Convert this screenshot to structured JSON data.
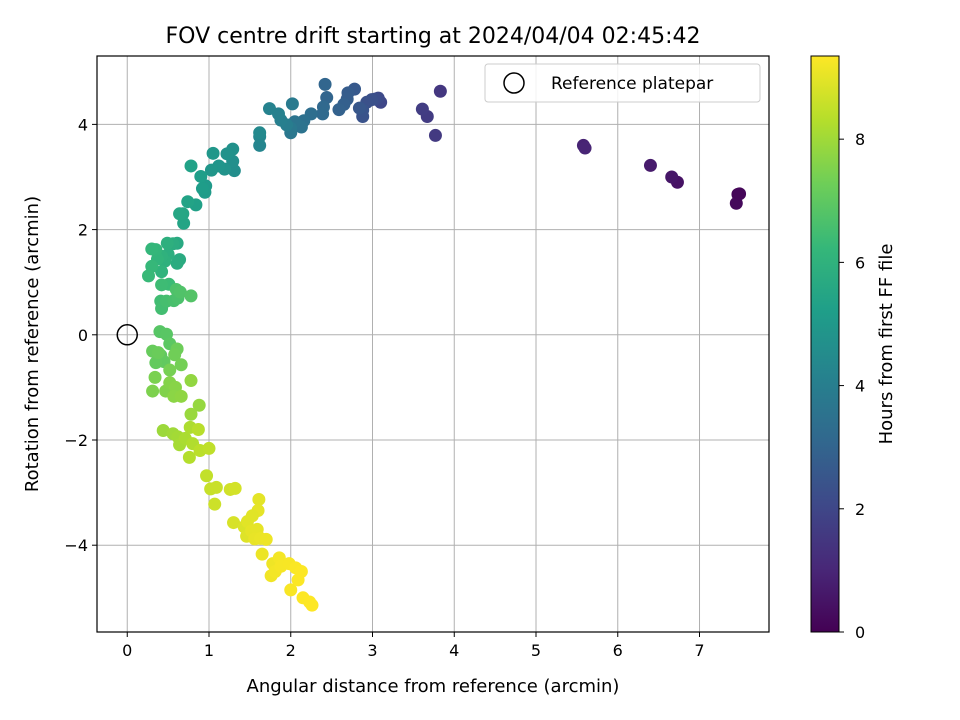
{
  "chart_data": {
    "type": "scatter",
    "title": "FOV centre drift starting at 2024/04/04 02:45:42",
    "xlabel": "Angular distance from reference (arcmin)",
    "ylabel": "Rotation from reference (arcmin)",
    "xlim": [
      -0.37,
      7.85
    ],
    "ylim": [
      -5.65,
      5.3
    ],
    "xticks": [
      0,
      1,
      2,
      3,
      4,
      5,
      6,
      7
    ],
    "yticks": [
      -4,
      -2,
      0,
      2,
      4
    ],
    "grid": true,
    "legend": {
      "position": "top-right",
      "entries": [
        "Reference platepar"
      ]
    },
    "reference_point": {
      "label": "Reference platepar",
      "x": 0,
      "y": 0
    },
    "colorbar": {
      "label": "Hours from first FF file",
      "colormap": "viridis",
      "range": [
        0,
        9.35
      ],
      "ticks": [
        0,
        2,
        4,
        6,
        8
      ]
    },
    "points": [
      [
        7.47,
        2.67,
        0.1
      ],
      [
        7.45,
        2.5,
        0.2
      ],
      [
        7.49,
        2.68,
        0.15
      ],
      [
        6.73,
        2.9,
        0.45
      ],
      [
        6.66,
        3.0,
        0.55
      ],
      [
        6.4,
        3.22,
        0.7
      ],
      [
        5.58,
        3.6,
        0.9
      ],
      [
        5.6,
        3.55,
        0.95
      ],
      [
        3.83,
        4.63,
        1.5
      ],
      [
        3.77,
        3.79,
        1.6
      ],
      [
        3.67,
        4.15,
        1.65
      ],
      [
        3.61,
        4.29,
        1.7
      ],
      [
        3.1,
        4.42,
        2.0
      ],
      [
        3.07,
        4.5,
        2.1
      ],
      [
        3.03,
        4.48,
        2.2
      ],
      [
        2.99,
        4.47,
        2.3
      ],
      [
        2.93,
        4.42,
        2.35
      ],
      [
        2.88,
        4.15,
        2.4
      ],
      [
        2.88,
        4.27,
        2.45
      ],
      [
        2.84,
        4.31,
        2.55
      ],
      [
        2.78,
        4.67,
        2.6
      ],
      [
        2.7,
        4.6,
        2.7
      ],
      [
        2.69,
        4.48,
        2.75
      ],
      [
        2.65,
        4.38,
        2.85
      ],
      [
        2.59,
        4.28,
        2.9
      ],
      [
        2.44,
        4.51,
        3.0
      ],
      [
        2.42,
        4.76,
        3.05
      ],
      [
        2.4,
        4.33,
        3.15
      ],
      [
        2.39,
        4.2,
        3.2
      ],
      [
        2.25,
        4.2,
        3.35
      ],
      [
        2.16,
        4.07,
        3.45
      ],
      [
        2.13,
        3.95,
        3.55
      ],
      [
        2.05,
        4.05,
        3.6
      ],
      [
        2.0,
        3.84,
        3.7
      ],
      [
        2.0,
        3.93,
        3.75
      ],
      [
        2.02,
        4.39,
        3.85
      ],
      [
        1.95,
        3.99,
        3.95
      ],
      [
        1.88,
        4.08,
        4.05
      ],
      [
        1.85,
        4.2,
        4.1
      ],
      [
        1.74,
        4.3,
        4.15
      ],
      [
        1.62,
        3.6,
        4.25
      ],
      [
        1.62,
        3.77,
        4.3
      ],
      [
        1.62,
        3.84,
        4.4
      ],
      [
        1.31,
        3.12,
        4.6
      ],
      [
        1.29,
        3.3,
        4.65
      ],
      [
        1.29,
        3.53,
        4.7
      ],
      [
        1.22,
        3.44,
        4.75
      ],
      [
        1.19,
        3.15,
        4.8
      ],
      [
        1.12,
        3.21,
        4.85
      ],
      [
        1.03,
        3.13,
        4.9
      ],
      [
        1.05,
        3.45,
        4.95
      ],
      [
        0.96,
        2.83,
        5.05
      ],
      [
        0.95,
        2.71,
        5.1
      ],
      [
        0.92,
        2.78,
        5.15
      ],
      [
        0.9,
        3.01,
        5.2
      ],
      [
        0.84,
        2.47,
        5.3
      ],
      [
        0.78,
        3.21,
        5.35
      ],
      [
        0.74,
        2.53,
        5.4
      ],
      [
        0.69,
        2.12,
        5.45
      ],
      [
        0.68,
        2.3,
        5.5
      ],
      [
        0.64,
        2.3,
        5.55
      ],
      [
        0.61,
        1.74,
        5.65
      ],
      [
        0.64,
        1.43,
        5.7
      ],
      [
        0.61,
        1.36,
        5.75
      ],
      [
        0.56,
        1.73,
        5.8
      ],
      [
        0.5,
        1.53,
        5.85
      ],
      [
        0.49,
        1.74,
        5.9
      ],
      [
        0.46,
        1.4,
        5.95
      ],
      [
        0.42,
        1.49,
        6.0
      ],
      [
        0.42,
        1.2,
        6.05
      ],
      [
        0.37,
        1.44,
        6.1
      ],
      [
        0.35,
        1.62,
        6.15
      ],
      [
        0.3,
        1.63,
        6.2
      ],
      [
        0.3,
        1.3,
        6.25
      ],
      [
        0.26,
        1.12,
        6.3
      ],
      [
        0.51,
        0.96,
        6.35
      ],
      [
        0.42,
        0.95,
        6.4
      ],
      [
        0.41,
        0.64,
        6.45
      ],
      [
        0.42,
        0.5,
        6.5
      ],
      [
        0.48,
        0.64,
        6.55
      ],
      [
        0.57,
        0.65,
        6.6
      ],
      [
        0.62,
        0.7,
        6.65
      ],
      [
        0.6,
        0.86,
        6.7
      ],
      [
        0.65,
        0.81,
        6.75
      ],
      [
        0.78,
        0.74,
        6.8
      ],
      [
        0.4,
        0.06,
        6.85
      ],
      [
        0.48,
        0.01,
        6.9
      ],
      [
        0.52,
        -0.17,
        6.95
      ],
      [
        0.41,
        -0.39,
        7.0
      ],
      [
        0.45,
        -0.51,
        7.05
      ],
      [
        0.35,
        -0.53,
        7.1
      ],
      [
        0.31,
        -0.31,
        7.15
      ],
      [
        0.38,
        -0.34,
        7.2
      ],
      [
        0.61,
        -0.27,
        7.25
      ],
      [
        0.58,
        -0.38,
        7.3
      ],
      [
        0.66,
        -0.57,
        7.35
      ],
      [
        0.52,
        -0.67,
        7.4
      ],
      [
        0.34,
        -0.81,
        7.45
      ],
      [
        0.31,
        -1.07,
        7.5
      ],
      [
        0.47,
        -1.07,
        7.55
      ],
      [
        0.52,
        -0.91,
        7.6
      ],
      [
        0.59,
        -1.0,
        7.65
      ],
      [
        0.57,
        -1.17,
        7.7
      ],
      [
        0.66,
        -1.17,
        7.75
      ],
      [
        0.78,
        -0.87,
        7.8
      ],
      [
        0.88,
        -1.34,
        7.85
      ],
      [
        0.78,
        -1.51,
        7.9
      ],
      [
        0.44,
        -1.82,
        7.95
      ],
      [
        0.56,
        -1.88,
        8.0
      ],
      [
        0.62,
        -1.94,
        8.05
      ],
      [
        0.64,
        -2.09,
        8.1
      ],
      [
        0.71,
        -1.97,
        8.15
      ],
      [
        0.77,
        -1.76,
        8.2
      ],
      [
        0.8,
        -2.07,
        8.25
      ],
      [
        0.76,
        -2.33,
        8.3
      ],
      [
        0.87,
        -1.8,
        8.35
      ],
      [
        0.89,
        -2.2,
        8.4
      ],
      [
        1.0,
        -2.16,
        8.45
      ],
      [
        0.97,
        -2.68,
        8.5
      ],
      [
        1.02,
        -2.93,
        8.55
      ],
      [
        1.09,
        -2.9,
        8.6
      ],
      [
        1.07,
        -3.22,
        8.65
      ],
      [
        1.26,
        -2.94,
        8.7
      ],
      [
        1.32,
        -2.92,
        8.75
      ],
      [
        1.3,
        -3.57,
        8.8
      ],
      [
        1.43,
        -3.65,
        8.85
      ],
      [
        1.46,
        -3.83,
        8.9
      ],
      [
        1.47,
        -3.55,
        8.95
      ],
      [
        1.52,
        -3.73,
        9.0
      ],
      [
        1.59,
        -3.7,
        9.02
      ],
      [
        1.56,
        -3.88,
        9.05
      ],
      [
        1.63,
        -3.87,
        9.08
      ],
      [
        1.65,
        -4.17,
        9.1
      ],
      [
        1.7,
        -3.89,
        9.12
      ],
      [
        1.78,
        -4.35,
        9.15
      ],
      [
        1.76,
        -4.58,
        9.17
      ],
      [
        1.81,
        -4.5,
        9.2
      ],
      [
        1.86,
        -4.24,
        9.22
      ],
      [
        1.88,
        -4.4,
        9.25
      ],
      [
        1.98,
        -4.35,
        9.27
      ],
      [
        2.0,
        -4.85,
        9.28
      ],
      [
        2.06,
        -4.43,
        9.3
      ],
      [
        2.09,
        -4.66,
        9.32
      ],
      [
        2.13,
        -4.5,
        9.33
      ],
      [
        2.15,
        -5.0,
        9.34
      ],
      [
        2.23,
        -5.08,
        9.35
      ],
      [
        2.26,
        -5.14,
        9.35
      ],
      [
        1.61,
        -3.13,
        8.98
      ],
      [
        1.6,
        -3.34,
        9.0
      ],
      [
        1.53,
        -3.44,
        8.95
      ]
    ]
  }
}
